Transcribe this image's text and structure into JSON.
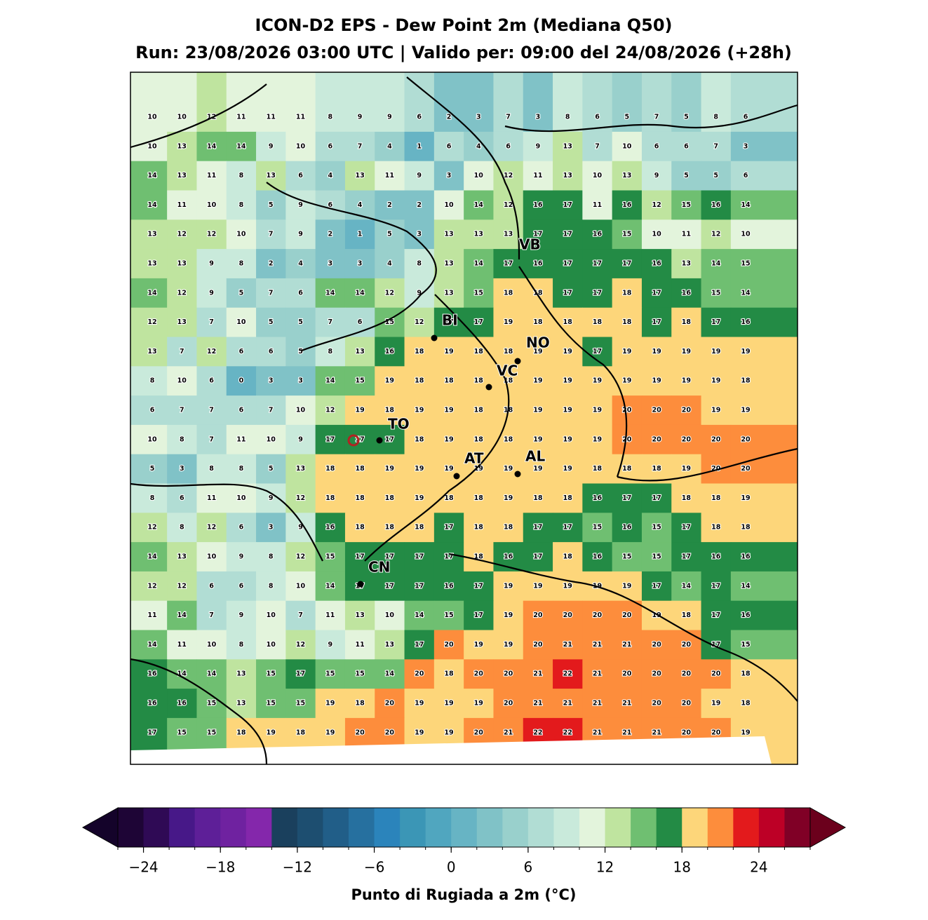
{
  "title": "ICON-D2 EPS - Dew Point 2m (Mediana Q50)",
  "subtitle": "Run: 23/08/2026 03:00 UTC | Valido per: 09:00 del 24/08/2026 (+28h)",
  "map": {
    "values": [
      [
        10,
        10,
        12,
        11,
        11,
        11,
        8,
        9,
        9,
        6,
        2,
        3,
        7,
        3,
        8,
        6,
        5,
        7,
        5,
        8,
        6
      ],
      [
        10,
        13,
        14,
        14,
        9,
        10,
        6,
        7,
        4,
        1,
        6,
        4,
        6,
        9,
        13,
        7,
        10,
        6,
        6,
        7,
        3
      ],
      [
        14,
        13,
        11,
        8,
        13,
        6,
        4,
        13,
        11,
        9,
        3,
        10,
        12,
        11,
        13,
        10,
        13,
        9,
        5,
        5,
        6
      ],
      [
        14,
        11,
        10,
        8,
        5,
        9,
        6,
        4,
        2,
        2,
        10,
        14,
        12,
        16,
        17,
        11,
        16,
        12,
        15,
        16,
        14
      ],
      [
        13,
        12,
        12,
        10,
        7,
        9,
        2,
        1,
        5,
        3,
        13,
        13,
        13,
        17,
        17,
        16,
        15,
        10,
        11,
        12,
        10
      ],
      [
        13,
        13,
        9,
        8,
        2,
        4,
        3,
        3,
        4,
        8,
        13,
        14,
        17,
        16,
        17,
        17,
        17,
        16,
        13,
        14,
        15
      ],
      [
        14,
        12,
        9,
        5,
        7,
        6,
        14,
        14,
        12,
        9,
        13,
        15,
        18,
        18,
        17,
        17,
        18,
        17,
        16,
        15,
        14
      ],
      [
        12,
        13,
        7,
        10,
        5,
        5,
        7,
        6,
        15,
        12,
        17,
        17,
        19,
        18,
        18,
        18,
        18,
        17,
        18,
        17,
        16
      ],
      [
        13,
        7,
        12,
        6,
        6,
        5,
        8,
        13,
        16,
        18,
        19,
        18,
        18,
        19,
        19,
        17,
        19,
        19,
        19,
        19,
        19
      ],
      [
        8,
        10,
        6,
        0,
        3,
        3,
        14,
        15,
        19,
        18,
        18,
        18,
        18,
        19,
        19,
        19,
        19,
        19,
        19,
        19,
        18
      ],
      [
        6,
        7,
        7,
        6,
        7,
        10,
        12,
        19,
        18,
        19,
        19,
        18,
        18,
        19,
        19,
        19,
        20,
        20,
        20,
        19,
        19
      ],
      [
        10,
        8,
        7,
        11,
        10,
        9,
        17,
        17,
        17,
        18,
        19,
        18,
        18,
        19,
        19,
        19,
        20,
        20,
        20,
        20,
        20
      ],
      [
        5,
        3,
        8,
        8,
        5,
        13,
        18,
        18,
        19,
        19,
        19,
        19,
        19,
        19,
        19,
        18,
        18,
        18,
        19,
        20,
        20
      ],
      [
        8,
        6,
        11,
        10,
        9,
        12,
        18,
        18,
        18,
        19,
        18,
        18,
        19,
        18,
        18,
        16,
        17,
        17,
        18,
        18,
        19
      ],
      [
        12,
        8,
        12,
        6,
        3,
        9,
        16,
        18,
        18,
        18,
        17,
        18,
        18,
        17,
        17,
        15,
        16,
        15,
        17,
        18,
        18
      ],
      [
        14,
        13,
        10,
        9,
        8,
        12,
        15,
        17,
        17,
        17,
        17,
        18,
        16,
        17,
        18,
        16,
        15,
        15,
        17,
        16,
        16
      ],
      [
        12,
        12,
        6,
        6,
        8,
        10,
        14,
        17,
        17,
        17,
        16,
        17,
        19,
        19,
        19,
        19,
        19,
        17,
        14,
        17,
        14
      ],
      [
        11,
        14,
        7,
        9,
        10,
        7,
        11,
        13,
        10,
        14,
        15,
        17,
        19,
        20,
        20,
        20,
        20,
        19,
        18,
        17,
        16
      ],
      [
        14,
        11,
        10,
        8,
        10,
        12,
        9,
        11,
        13,
        17,
        20,
        19,
        19,
        20,
        21,
        21,
        21,
        20,
        20,
        17,
        15
      ],
      [
        16,
        14,
        14,
        13,
        15,
        17,
        15,
        15,
        14,
        20,
        18,
        20,
        20,
        21,
        22,
        21,
        20,
        20,
        20,
        20,
        18
      ],
      [
        16,
        16,
        15,
        13,
        15,
        15,
        19,
        18,
        20,
        19,
        19,
        19,
        20,
        21,
        21,
        21,
        21,
        20,
        20,
        19,
        18
      ],
      [
        17,
        15,
        15,
        18,
        19,
        18,
        19,
        20,
        20,
        19,
        19,
        20,
        21,
        22,
        22,
        21,
        21,
        21,
        20,
        20,
        19
      ]
    ],
    "cities": [
      "VB",
      "BI",
      "NO",
      "VC",
      "TO",
      "AT",
      "AL",
      "CN"
    ]
  },
  "colorbar": {
    "label": "Punto di Rugiada a 2m (°C)",
    "levels": [
      -26,
      -24,
      -22,
      -20,
      -18,
      -16,
      -14,
      -12,
      -10,
      -8,
      -6,
      -4,
      -2,
      0,
      2,
      4,
      6,
      8,
      10,
      12,
      14,
      16,
      18,
      20,
      22,
      24,
      26,
      28
    ],
    "colors": [
      "#1e0536",
      "#2f0a55",
      "#471888",
      "#5e1f98",
      "#6f22a0",
      "#8427ab",
      "#1a405d",
      "#1d4e70",
      "#215e88",
      "#26709f",
      "#2b84bb",
      "#3b96b6",
      "#50a6bf",
      "#67b4c4",
      "#80c2c7",
      "#99d0cc",
      "#b1ddd4",
      "#c9eadb",
      "#e3f4dc",
      "#bfe49f",
      "#6fbf71",
      "#238b45",
      "#fdd67a",
      "#fd8d3c",
      "#e31a1c",
      "#bd0026",
      "#800026"
    ],
    "under_color": "#14032a",
    "over_color": "#6b001c",
    "ticks": [
      {
        "value": -24,
        "label": "−24"
      },
      {
        "value": -18,
        "label": "−18"
      },
      {
        "value": -12,
        "label": "−12"
      },
      {
        "value": -6,
        "label": "−6"
      },
      0,
      6,
      12,
      18,
      24
    ]
  }
}
